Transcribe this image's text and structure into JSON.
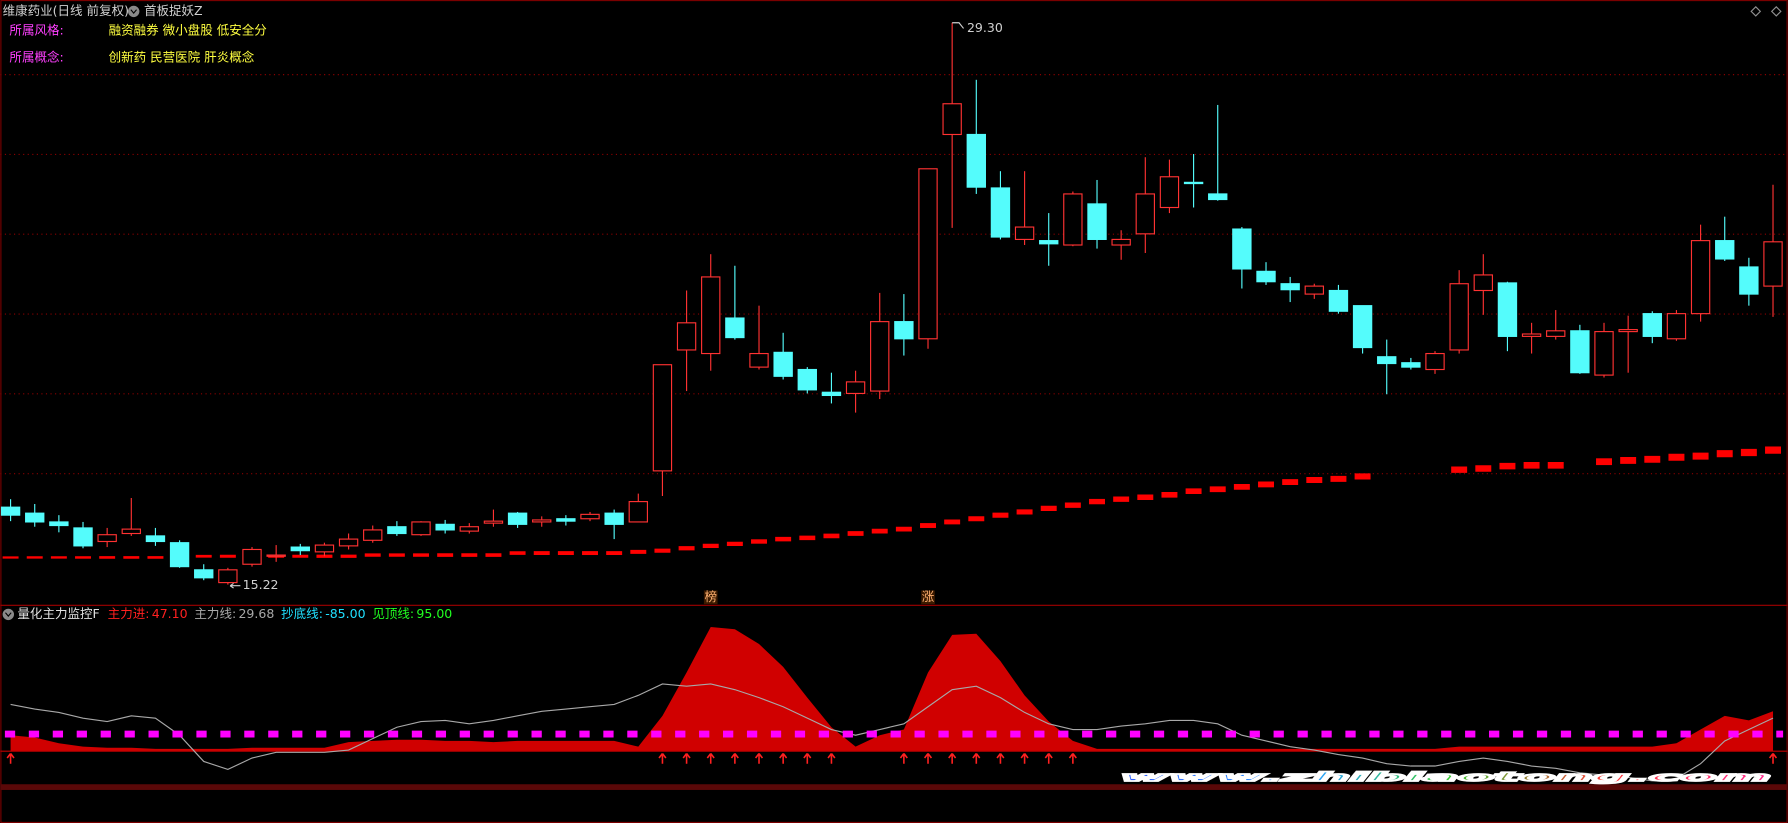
{
  "header": {
    "stock": "维康药业(日线 前复权)",
    "indicator": "首板捉妖Z"
  },
  "info": [
    {
      "label": "所属风格:",
      "value": "融资融券 微小盘股 低安全分"
    },
    {
      "label": "所属概念:",
      "value": "创新药 民营医院 肝炎概念"
    }
  ],
  "chart_data": [
    {
      "type": "candlestick",
      "ylim": [
        14.73,
        29.87
      ],
      "grid_levels": [
        18,
        20,
        22,
        24,
        26,
        28
      ],
      "up_color": "#ff3232",
      "down_color": "#54fcfc",
      "candles": [
        [
          17.16,
          17.36,
          16.81,
          16.96
        ],
        [
          17.01,
          17.24,
          16.67,
          16.79
        ],
        [
          16.79,
          16.96,
          16.53,
          16.7
        ],
        [
          16.64,
          16.79,
          16.13,
          16.19
        ],
        [
          16.3,
          16.64,
          16.16,
          16.47
        ],
        [
          16.5,
          17.39,
          16.44,
          16.61
        ],
        [
          16.44,
          16.64,
          16.19,
          16.3
        ],
        [
          16.27,
          16.33,
          15.64,
          15.67
        ],
        [
          15.59,
          15.73,
          15.33,
          15.39
        ],
        [
          15.27,
          15.64,
          15.22,
          15.59
        ],
        [
          15.73,
          16.16,
          15.67,
          16.1
        ],
        [
          15.93,
          16.21,
          15.79,
          15.96
        ],
        [
          16.16,
          16.24,
          15.96,
          16.07
        ],
        [
          16.04,
          16.27,
          15.93,
          16.21
        ],
        [
          16.19,
          16.5,
          16.1,
          16.36
        ],
        [
          16.33,
          16.7,
          16.27,
          16.59
        ],
        [
          16.67,
          16.81,
          16.44,
          16.5
        ],
        [
          16.47,
          16.81,
          16.44,
          16.79
        ],
        [
          16.73,
          16.84,
          16.5,
          16.59
        ],
        [
          16.56,
          16.76,
          16.5,
          16.67
        ],
        [
          16.76,
          17.1,
          16.67,
          16.81
        ],
        [
          17.01,
          17.04,
          16.64,
          16.73
        ],
        [
          16.79,
          16.93,
          16.67,
          16.84
        ],
        [
          16.87,
          16.96,
          16.7,
          16.81
        ],
        [
          16.87,
          17.04,
          16.81,
          16.98
        ],
        [
          17.01,
          17.1,
          16.36,
          16.73
        ],
        [
          16.79,
          17.5,
          16.79,
          17.3
        ],
        [
          18.07,
          20.73,
          17.44,
          20.73
        ],
        [
          21.1,
          22.59,
          20.07,
          21.78
        ],
        [
          21.01,
          23.5,
          20.58,
          22.93
        ],
        [
          21.9,
          23.21,
          21.36,
          21.41
        ],
        [
          20.67,
          22.21,
          20.61,
          21.01
        ],
        [
          21.04,
          21.53,
          20.36,
          20.44
        ],
        [
          20.61,
          20.67,
          20.01,
          20.1
        ],
        [
          20.04,
          20.53,
          19.76,
          19.96
        ],
        [
          20.01,
          20.58,
          19.53,
          20.3
        ],
        [
          20.07,
          22.53,
          19.87,
          21.81
        ],
        [
          21.81,
          22.5,
          20.96,
          21.38
        ],
        [
          21.38,
          25.64,
          21.13,
          25.64
        ],
        [
          26.5,
          29.3,
          24.16,
          27.27
        ],
        [
          26.5,
          27.87,
          25.01,
          25.18
        ],
        [
          25.16,
          25.58,
          23.87,
          23.93
        ],
        [
          23.87,
          25.58,
          23.73,
          24.18
        ],
        [
          23.84,
          24.53,
          23.21,
          23.76
        ],
        [
          23.73,
          25.07,
          23.7,
          25.01
        ],
        [
          24.76,
          25.36,
          23.64,
          23.87
        ],
        [
          23.73,
          24.1,
          23.36,
          23.87
        ],
        [
          24.01,
          25.93,
          23.53,
          25.01
        ],
        [
          24.67,
          25.87,
          24.53,
          25.44
        ],
        [
          25.3,
          26.01,
          24.67,
          25.27
        ],
        [
          25.01,
          27.24,
          24.84,
          24.87
        ],
        [
          24.13,
          24.18,
          22.64,
          23.13
        ],
        [
          23.07,
          23.3,
          22.73,
          22.81
        ],
        [
          22.76,
          22.93,
          22.3,
          22.61
        ],
        [
          22.5,
          22.76,
          22.38,
          22.7
        ],
        [
          22.59,
          22.73,
          22.01,
          22.07
        ],
        [
          22.21,
          22.21,
          21.01,
          21.16
        ],
        [
          20.93,
          21.36,
          19.99,
          20.76
        ],
        [
          20.78,
          20.9,
          20.61,
          20.67
        ],
        [
          20.61,
          21.07,
          20.5,
          21.01
        ],
        [
          21.1,
          23.1,
          21.01,
          22.76
        ],
        [
          22.59,
          23.5,
          21.98,
          22.98
        ],
        [
          22.78,
          22.81,
          21.07,
          21.44
        ],
        [
          21.44,
          21.78,
          21.01,
          21.5
        ],
        [
          21.44,
          22.1,
          21.36,
          21.58
        ],
        [
          21.58,
          21.73,
          20.5,
          20.53
        ],
        [
          20.47,
          21.78,
          20.41,
          21.56
        ],
        [
          21.56,
          21.96,
          20.53,
          21.61
        ],
        [
          22.01,
          22.07,
          21.27,
          21.44
        ],
        [
          21.38,
          22.1,
          21.33,
          22.01
        ],
        [
          22.01,
          24.24,
          21.81,
          23.84
        ],
        [
          23.84,
          24.44,
          23.33,
          23.38
        ],
        [
          23.18,
          23.41,
          22.21,
          22.5
        ],
        [
          22.7,
          25.24,
          21.93,
          23.81
        ]
      ],
      "ma": [
        15.9,
        15.9,
        15.9,
        15.9,
        15.9,
        15.9,
        15.9,
        15.9,
        15.93,
        15.93,
        15.93,
        15.93,
        15.93,
        15.93,
        15.93,
        15.96,
        15.96,
        15.96,
        15.96,
        15.96,
        15.96,
        16.01,
        16.01,
        16.01,
        16.01,
        16.01,
        16.04,
        16.07,
        16.13,
        16.19,
        16.24,
        16.3,
        16.36,
        16.39,
        16.44,
        16.5,
        16.56,
        16.61,
        16.7,
        16.79,
        16.87,
        16.96,
        17.04,
        17.13,
        17.21,
        17.3,
        17.36,
        17.41,
        17.47,
        17.56,
        17.61,
        17.67,
        17.73,
        17.79,
        17.84,
        17.87,
        17.93,
        null,
        null,
        null,
        18.1,
        18.13,
        18.19,
        18.21,
        18.21,
        null,
        18.3,
        18.33,
        18.36,
        18.41,
        18.44,
        18.5,
        18.53,
        18.59
      ],
      "ma_color": "#ff0000",
      "annotations": [
        {
          "index": 39,
          "text": "29.30"
        },
        {
          "index": 9,
          "text": "15.22"
        }
      ],
      "markers": [
        {
          "index": 29,
          "text": "榜"
        },
        {
          "index": 38,
          "text": "涨"
        }
      ]
    },
    {
      "type": "indicator",
      "title": "量化主力监控F",
      "readouts": [
        {
          "name": "主力进:",
          "value": "47.10",
          "color": "#ff2020"
        },
        {
          "name": "主力线:",
          "value": "29.68",
          "color": "#a8a8a8"
        },
        {
          "name": "抄底线:",
          "value": "-85.00",
          "color": "#20e0ff"
        },
        {
          "name": "见顶线:",
          "value": "95.00",
          "color": "#20ff20"
        }
      ],
      "ylim": [
        -60,
        126
      ],
      "area": [
        14,
        12,
        7,
        4,
        3,
        3,
        2,
        2,
        2,
        2,
        3,
        3,
        3,
        3,
        8,
        9,
        10,
        10,
        9,
        9,
        8,
        9,
        9,
        9,
        9,
        9,
        4,
        31,
        69,
        109,
        107,
        94,
        74,
        47,
        21,
        4,
        14,
        19,
        69,
        102,
        103,
        79,
        49,
        26,
        9,
        2,
        2,
        2,
        2,
        2,
        2,
        2,
        2,
        2,
        2,
        2,
        2,
        2,
        2,
        2,
        4,
        4,
        4,
        4,
        4,
        4,
        4,
        4,
        4,
        7,
        19,
        31,
        27,
        35
      ],
      "area_color": "#d00000",
      "line": [
        41,
        37,
        34,
        29,
        26,
        31,
        29,
        14,
        -9,
        -16,
        -6,
        -1,
        -1,
        -1,
        1,
        11,
        21,
        26,
        27,
        24,
        27,
        31,
        35,
        37,
        39,
        41,
        49,
        59,
        57,
        59,
        54,
        47,
        39,
        29,
        19,
        14,
        19,
        24,
        39,
        54,
        57,
        47,
        34,
        24,
        19,
        19,
        22,
        24,
        27,
        27,
        24,
        14,
        9,
        4,
        1,
        -3,
        -6,
        -11,
        -13,
        -13,
        -9,
        -6,
        -9,
        -13,
        -15,
        -19,
        -21,
        -23,
        -26,
        -24,
        -11,
        9,
        19,
        29
      ],
      "line_color": "#a8a8a8",
      "level": 15,
      "level_color": "#ff00ff",
      "signals": [
        0,
        27,
        28,
        29,
        30,
        31,
        32,
        33,
        34,
        37,
        38,
        39,
        40,
        41,
        42,
        43,
        44,
        73
      ]
    }
  ],
  "watermark": "www.zhibiaotong.com"
}
